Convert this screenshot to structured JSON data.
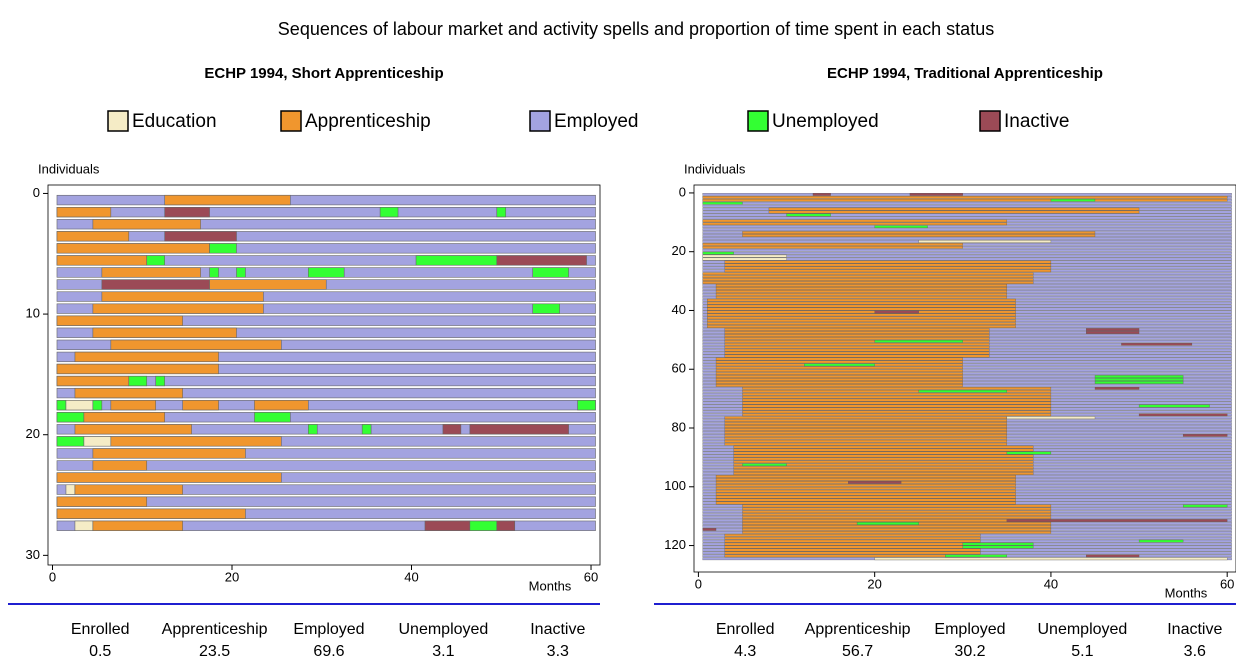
{
  "title": "Sequences of labour market and activity spells and proportion of time spent in each status",
  "legend": [
    {
      "name": "Education",
      "color": "#f5ecc6"
    },
    {
      "name": "Apprenticeship",
      "color": "#f0962e"
    },
    {
      "name": "Employed",
      "color": "#a3a3e0"
    },
    {
      "name": "Unemployed",
      "color": "#33ff33"
    },
    {
      "name": "Inactive",
      "color": "#9b4a56"
    }
  ],
  "chart_data": [
    {
      "type": "sequence",
      "title": "ECHP 1994, Short Apprenticeship",
      "ylabel": "Individuals",
      "xlabel": "Months",
      "xlim": [
        -0.5,
        61
      ],
      "ylim": [
        -0.7,
        30.8
      ],
      "xticks": [
        0,
        20,
        40,
        60
      ],
      "yticks": [
        0,
        10,
        20,
        30
      ],
      "spells": [
        [
          0,
          0.5,
          60.5,
          2
        ],
        [
          0,
          12.5,
          26.5,
          1
        ],
        [
          1,
          0.5,
          60.5,
          2
        ],
        [
          1,
          0.5,
          6.5,
          1
        ],
        [
          1,
          12.5,
          17.5,
          4
        ],
        [
          1,
          36.5,
          38.5,
          3
        ],
        [
          1,
          49.5,
          50.5,
          3
        ],
        [
          2,
          0.5,
          60.5,
          2
        ],
        [
          2,
          4.5,
          16.5,
          1
        ],
        [
          3,
          0.5,
          60.5,
          2
        ],
        [
          3,
          0.5,
          8.5,
          1
        ],
        [
          3,
          12.5,
          20.5,
          4
        ],
        [
          4,
          0.5,
          60.5,
          2
        ],
        [
          4,
          0.5,
          17.5,
          1
        ],
        [
          4,
          17.5,
          20.5,
          3
        ],
        [
          5,
          0.5,
          60.5,
          2
        ],
        [
          5,
          0.5,
          10.5,
          1
        ],
        [
          5,
          10.5,
          12.5,
          3
        ],
        [
          5,
          40.5,
          49.5,
          3
        ],
        [
          5,
          49.5,
          59.5,
          4
        ],
        [
          6,
          0.5,
          60.5,
          2
        ],
        [
          6,
          5.5,
          16.5,
          1
        ],
        [
          6,
          17.5,
          18.5,
          3
        ],
        [
          6,
          20.5,
          21.5,
          3
        ],
        [
          6,
          28.5,
          32.5,
          3
        ],
        [
          6,
          53.5,
          57.5,
          3
        ],
        [
          7,
          0.5,
          60.5,
          2
        ],
        [
          7,
          5.5,
          17.5,
          4
        ],
        [
          7,
          17.5,
          30.5,
          1
        ],
        [
          8,
          0.5,
          60.5,
          2
        ],
        [
          8,
          5.5,
          23.5,
          1
        ],
        [
          9,
          0.5,
          60.5,
          2
        ],
        [
          9,
          4.5,
          23.5,
          1
        ],
        [
          9,
          53.5,
          56.5,
          3
        ],
        [
          10,
          0.5,
          60.5,
          2
        ],
        [
          10,
          0.5,
          14.5,
          1
        ],
        [
          11,
          0.5,
          60.5,
          2
        ],
        [
          11,
          4.5,
          20.5,
          1
        ],
        [
          12,
          0.5,
          60.5,
          2
        ],
        [
          12,
          6.5,
          25.5,
          1
        ],
        [
          13,
          0.5,
          60.5,
          2
        ],
        [
          13,
          2.5,
          18.5,
          1
        ],
        [
          14,
          0.5,
          60.5,
          2
        ],
        [
          14,
          0.5,
          18.5,
          1
        ],
        [
          15,
          0.5,
          60.5,
          2
        ],
        [
          15,
          0.5,
          8.5,
          1
        ],
        [
          15,
          8.5,
          10.5,
          3
        ],
        [
          15,
          11.5,
          12.5,
          3
        ],
        [
          16,
          0.5,
          60.5,
          2
        ],
        [
          16,
          2.5,
          14.5,
          1
        ],
        [
          17,
          0.5,
          60.5,
          2
        ],
        [
          17,
          0.5,
          1.5,
          3
        ],
        [
          17,
          1.5,
          4.5,
          0
        ],
        [
          17,
          4.5,
          5.5,
          3
        ],
        [
          17,
          6.5,
          11.5,
          1
        ],
        [
          17,
          14.5,
          18.5,
          1
        ],
        [
          17,
          22.5,
          28.5,
          1
        ],
        [
          17,
          58.5,
          60.5,
          3
        ],
        [
          18,
          0.5,
          60.5,
          2
        ],
        [
          18,
          0.5,
          3.5,
          3
        ],
        [
          18,
          3.5,
          12.5,
          1
        ],
        [
          18,
          22.5,
          26.5,
          3
        ],
        [
          19,
          0.5,
          60.5,
          2
        ],
        [
          19,
          2.5,
          15.5,
          1
        ],
        [
          19,
          28.5,
          29.5,
          3
        ],
        [
          19,
          34.5,
          35.5,
          3
        ],
        [
          19,
          43.5,
          45.5,
          4
        ],
        [
          19,
          46.5,
          57.5,
          4
        ],
        [
          20,
          0.5,
          60.5,
          2
        ],
        [
          20,
          0.5,
          3.5,
          3
        ],
        [
          20,
          3.5,
          6.5,
          0
        ],
        [
          20,
          6.5,
          25.5,
          1
        ],
        [
          21,
          0.5,
          60.5,
          2
        ],
        [
          21,
          4.5,
          21.5,
          1
        ],
        [
          22,
          0.5,
          60.5,
          2
        ],
        [
          22,
          4.5,
          10.5,
          1
        ],
        [
          23,
          0.5,
          60.5,
          2
        ],
        [
          23,
          0.5,
          25.5,
          1
        ],
        [
          24,
          0.5,
          60.5,
          2
        ],
        [
          24,
          1.5,
          2.5,
          0
        ],
        [
          24,
          2.5,
          14.5,
          1
        ],
        [
          25,
          0.5,
          60.5,
          2
        ],
        [
          25,
          0.5,
          10.5,
          1
        ],
        [
          26,
          0.5,
          60.5,
          2
        ],
        [
          26,
          0.5,
          21.5,
          1
        ],
        [
          27,
          0.5,
          60.5,
          2
        ],
        [
          27,
          2.5,
          4.5,
          0
        ],
        [
          27,
          4.5,
          14.5,
          1
        ],
        [
          27,
          41.5,
          46.5,
          4
        ],
        [
          27,
          46.5,
          49.5,
          3
        ],
        [
          27,
          49.5,
          51.5,
          4
        ]
      ],
      "stats": {
        "headers": [
          "Enrolled",
          "Apprenticeship",
          "Employed",
          "Unemployed",
          "Inactive"
        ],
        "values": [
          0.5,
          23.5,
          69.6,
          3.1,
          3.3
        ]
      }
    },
    {
      "type": "sequence-blocks",
      "title": "ECHP 1994, Traditional Apprenticeship",
      "ylabel": "Individuals",
      "xlabel": "Months",
      "xlim": [
        -0.5,
        61
      ],
      "ylim": [
        -2.7,
        129
      ],
      "xticks": [
        0,
        20,
        40,
        60
      ],
      "yticks": [
        0,
        20,
        40,
        60,
        80,
        100,
        120
      ],
      "spells": [
        [
          0,
          124,
          0.5,
          60.5,
          2
        ],
        [
          1,
          2,
          0.5,
          60,
          1
        ],
        [
          5,
          6,
          8,
          50,
          1
        ],
        [
          9,
          10,
          0.5,
          35,
          1
        ],
        [
          13,
          14,
          5,
          45,
          1
        ],
        [
          17,
          18,
          0.5,
          30,
          1
        ],
        [
          23,
          26,
          3,
          40,
          1
        ],
        [
          27,
          30,
          0.5,
          38,
          1
        ],
        [
          31,
          35,
          2,
          35,
          1
        ],
        [
          36,
          45,
          1,
          36,
          1
        ],
        [
          46,
          55,
          3,
          33,
          1
        ],
        [
          56,
          65,
          2,
          30,
          1
        ],
        [
          66,
          75,
          5,
          40,
          1
        ],
        [
          76,
          85,
          3,
          35,
          1
        ],
        [
          86,
          95,
          4,
          38,
          1
        ],
        [
          96,
          105,
          2,
          36,
          1
        ],
        [
          106,
          115,
          5,
          40,
          1
        ],
        [
          116,
          123,
          3,
          32,
          1
        ],
        [
          3,
          3,
          0.5,
          5,
          3
        ],
        [
          7,
          7,
          10,
          15,
          3
        ],
        [
          11,
          11,
          20,
          26,
          3
        ],
        [
          20,
          21,
          0.5,
          4,
          3
        ],
        [
          2,
          2,
          40,
          45,
          3
        ],
        [
          50,
          50,
          20,
          30,
          3
        ],
        [
          58,
          58,
          12,
          20,
          3
        ],
        [
          67,
          67,
          25,
          35,
          3
        ],
        [
          62,
          64,
          45,
          55,
          3
        ],
        [
          72,
          72,
          50,
          58,
          3
        ],
        [
          88,
          88,
          35,
          40,
          3
        ],
        [
          92,
          92,
          5,
          10,
          3
        ],
        [
          106,
          106,
          55,
          60,
          3
        ],
        [
          112,
          112,
          18,
          25,
          3
        ],
        [
          119,
          120,
          30,
          38,
          3
        ],
        [
          123,
          123,
          28,
          35,
          3
        ],
        [
          118,
          118,
          50,
          55,
          3
        ],
        [
          0,
          0,
          13,
          15,
          4
        ],
        [
          0,
          0,
          24,
          30,
          4
        ],
        [
          40,
          40,
          20,
          25,
          4
        ],
        [
          46,
          47,
          44,
          50,
          4
        ],
        [
          51,
          51,
          48,
          56,
          4
        ],
        [
          66,
          66,
          45,
          50,
          4
        ],
        [
          75,
          75,
          50,
          60,
          4
        ],
        [
          82,
          82,
          55,
          60,
          4
        ],
        [
          98,
          98,
          17,
          23,
          4
        ],
        [
          111,
          111,
          35,
          60,
          4
        ],
        [
          123,
          123,
          44,
          50,
          4
        ],
        [
          114,
          114,
          0.5,
          2,
          4
        ],
        [
          21,
          22,
          0.5,
          10,
          0
        ],
        [
          16,
          16,
          25,
          40,
          0
        ],
        [
          76,
          76,
          35,
          45,
          0
        ],
        [
          124,
          124,
          20,
          60,
          0
        ]
      ],
      "stats": {
        "headers": [
          "Enrolled",
          "Apprenticeship",
          "Employed",
          "Unemployed",
          "Inactive"
        ],
        "values": [
          4.3,
          56.7,
          30.2,
          5.1,
          3.6
        ]
      }
    }
  ]
}
